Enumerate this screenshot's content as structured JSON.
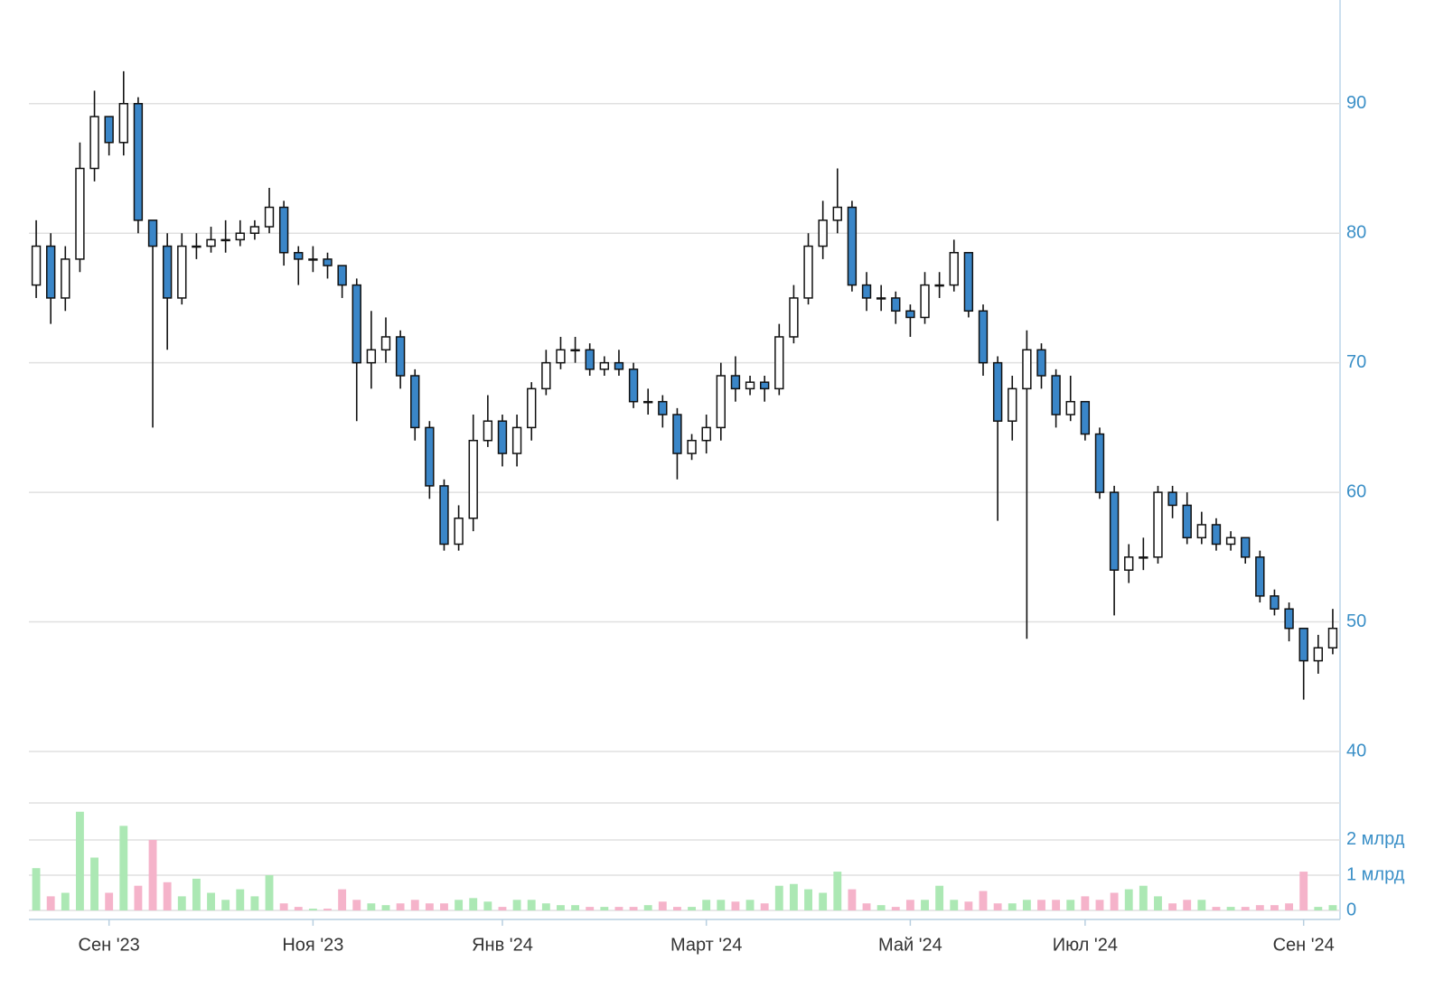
{
  "chart_data": [
    {
      "type": "candlestick",
      "categories": [
        null,
        null,
        null,
        null,
        null,
        "Сен '23",
        null,
        null,
        null,
        null,
        null,
        null,
        null,
        null,
        null,
        null,
        null,
        null,
        null,
        "Ноя '23",
        null,
        null,
        null,
        null,
        null,
        null,
        null,
        null,
        null,
        null,
        null,
        null,
        "Янв '24",
        null,
        null,
        null,
        null,
        null,
        null,
        null,
        null,
        null,
        null,
        null,
        null,
        null,
        "Март '24",
        null,
        null,
        null,
        null,
        null,
        null,
        null,
        null,
        null,
        null,
        null,
        null,
        null,
        "Май '24",
        null,
        null,
        null,
        null,
        null,
        null,
        null,
        null,
        null,
        null,
        null,
        "Июл '24",
        null,
        null,
        null,
        null,
        null,
        null,
        null,
        null,
        null,
        null,
        null,
        null,
        null,
        null,
        "Сен '24",
        null,
        null
      ],
      "open": [
        76,
        79,
        75,
        78,
        85,
        89,
        87,
        90,
        81,
        79,
        75,
        79,
        79,
        79.5,
        79.5,
        80,
        80.5,
        82,
        78.5,
        78,
        78,
        77.5,
        76,
        70,
        71,
        72,
        69,
        65,
        60.5,
        56,
        58,
        64,
        65.5,
        63,
        65,
        68,
        70,
        71,
        71,
        69.5,
        70,
        69.5,
        67,
        67,
        66,
        63,
        64,
        65,
        69,
        68,
        68.5,
        68,
        72,
        75,
        79,
        81,
        82,
        76,
        75,
        75,
        74,
        73.5,
        76,
        76,
        78.5,
        74,
        70,
        65.5,
        68,
        71,
        69,
        66,
        67,
        64.5,
        60,
        54,
        55,
        55,
        60,
        59,
        56.5,
        57.5,
        56,
        56.5,
        55,
        52,
        51,
        49.5,
        47,
        48
      ],
      "high": [
        81,
        80,
        79,
        87,
        91,
        89,
        92.5,
        90.5,
        81,
        80,
        80,
        80,
        80.5,
        81,
        81,
        81,
        83.5,
        82.5,
        79,
        79,
        78.5,
        77.5,
        76.5,
        74,
        73.5,
        72.5,
        69.5,
        65.5,
        61,
        59,
        66,
        67.5,
        66,
        66,
        68.5,
        71,
        72,
        72,
        71.5,
        70.5,
        71,
        70,
        68,
        67.5,
        66.5,
        64.5,
        66,
        70,
        70.5,
        69,
        69,
        73,
        76,
        80,
        82.5,
        85,
        82.5,
        77,
        76,
        75.5,
        74.5,
        77,
        77,
        79.5,
        78.5,
        74.5,
        70.5,
        69,
        72.5,
        71.5,
        69.5,
        69,
        67,
        65,
        60.5,
        56,
        56.5,
        60.5,
        60.5,
        60,
        58.5,
        58,
        57,
        56.5,
        55.5,
        52.5,
        51.5,
        49.5,
        49,
        51
      ],
      "low": [
        75,
        73,
        74,
        77,
        84,
        86,
        86,
        80,
        65,
        71,
        74.5,
        78,
        78.5,
        78.5,
        79,
        79.5,
        80,
        77.5,
        76,
        77,
        76.5,
        75,
        65.5,
        68,
        70,
        68,
        64,
        59.5,
        55.5,
        55.5,
        57,
        63.5,
        62,
        62,
        64,
        67.5,
        69.5,
        70,
        69,
        69,
        69,
        66.5,
        66,
        65,
        61,
        62.5,
        63,
        64,
        67,
        67.5,
        67,
        67.5,
        71.5,
        74.5,
        78,
        80,
        75.5,
        74,
        74,
        73,
        72,
        73,
        75,
        75.5,
        73.5,
        69,
        57.8,
        64,
        48.7,
        68,
        65,
        65.5,
        64,
        59.5,
        50.5,
        53,
        54,
        54.5,
        58,
        56,
        56,
        55.5,
        55.5,
        54.5,
        51.5,
        50.5,
        48.5,
        44,
        46,
        47.5
      ],
      "close": [
        79,
        75,
        78,
        85,
        89,
        87,
        90,
        81,
        79,
        75,
        79,
        79,
        79.5,
        79.5,
        80,
        80.5,
        82,
        78.5,
        78,
        78,
        77.5,
        76,
        70,
        71,
        72,
        69,
        65,
        60.5,
        56,
        58,
        64,
        65.5,
        63,
        65,
        68,
        70,
        71,
        71,
        69.5,
        70,
        69.5,
        67,
        67,
        66,
        63,
        64,
        65,
        69,
        68,
        68.5,
        68,
        72,
        75,
        79,
        81,
        82,
        76,
        75,
        75,
        74,
        73.5,
        76,
        76,
        78.5,
        74,
        70,
        65.5,
        68,
        71,
        69,
        66,
        67,
        64.5,
        60,
        54,
        55,
        55,
        60,
        59,
        56.5,
        57.5,
        56,
        56.5,
        55,
        52,
        51,
        49.5,
        47,
        48,
        49.5
      ],
      "up_color": "#ffffff",
      "down_color": "#3a86c8",
      "ylim": [
        40,
        98
      ],
      "yticks": [
        40,
        50,
        60,
        70,
        80,
        90
      ],
      "grid": true
    },
    {
      "type": "bar",
      "values": [
        1.2,
        0.4,
        0.5,
        2.8,
        1.5,
        0.5,
        2.4,
        0.7,
        2.0,
        0.8,
        0.4,
        0.9,
        0.5,
        0.3,
        0.6,
        0.4,
        1.0,
        0.2,
        0.1,
        0.05,
        0.05,
        0.6,
        0.3,
        0.2,
        0.15,
        0.2,
        0.3,
        0.2,
        0.2,
        0.3,
        0.35,
        0.25,
        0.1,
        0.3,
        0.3,
        0.2,
        0.15,
        0.15,
        0.1,
        0.1,
        0.1,
        0.1,
        0.15,
        0.25,
        0.1,
        0.1,
        0.3,
        0.3,
        0.25,
        0.3,
        0.2,
        0.7,
        0.75,
        0.6,
        0.5,
        1.1,
        0.6,
        0.2,
        0.15,
        0.1,
        0.3,
        0.3,
        0.7,
        0.3,
        0.25,
        0.55,
        0.2,
        0.2,
        0.3,
        0.3,
        0.3,
        0.3,
        0.4,
        0.3,
        0.5,
        0.6,
        0.7,
        0.4,
        0.2,
        0.3,
        0.3,
        0.1,
        0.1,
        0.1,
        0.15,
        0.15,
        0.2,
        1.1,
        0.1,
        0.15
      ],
      "up_color": "#ace8b4",
      "down_color": "#f5b3ca",
      "ylim": [
        0,
        3.05
      ],
      "yticks": [
        0,
        {
          "value": 1,
          "label": "1 млрд"
        },
        {
          "value": 2,
          "label": "2 млрд"
        }
      ],
      "grid": true
    }
  ]
}
